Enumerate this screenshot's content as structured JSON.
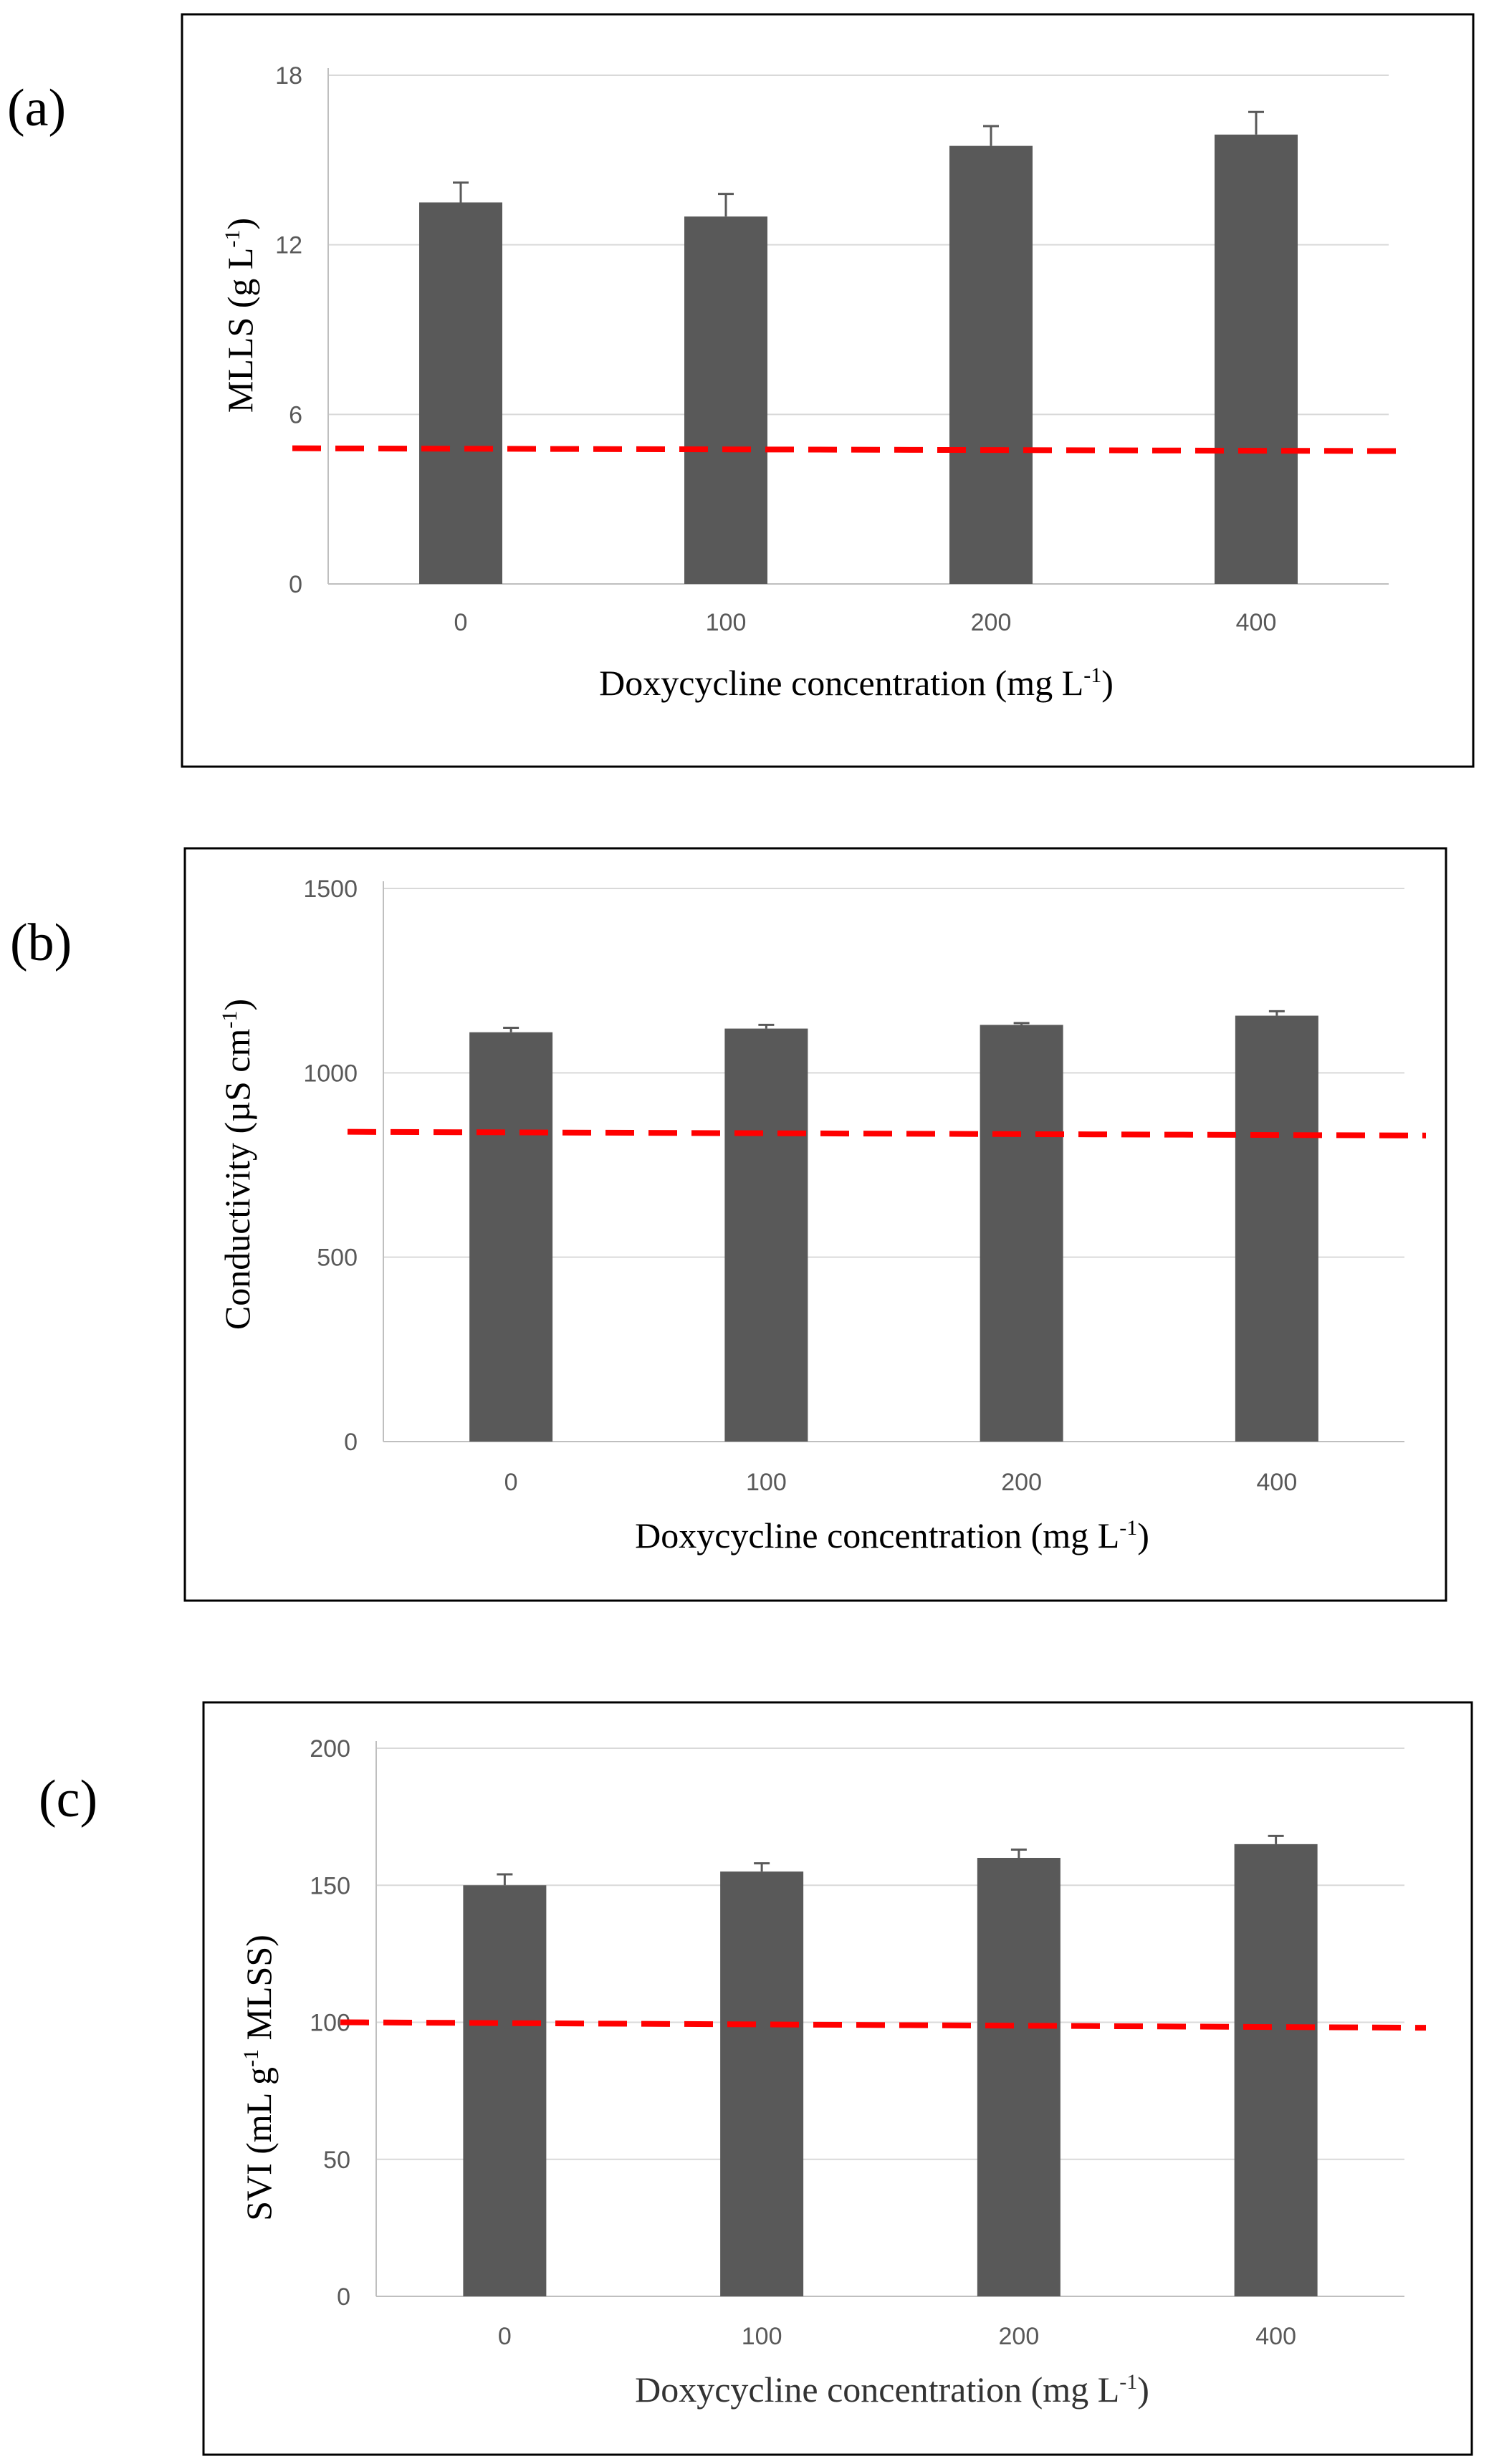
{
  "chart_data": [
    {
      "panel_label": "(a)",
      "type": "bar",
      "categories": [
        "0",
        "100",
        "200",
        "400"
      ],
      "values": [
        13.5,
        13.0,
        15.5,
        15.9
      ],
      "errors": [
        0.7,
        0.8,
        0.7,
        0.8
      ],
      "ylim": [
        0,
        18
      ],
      "yticks": [
        "0",
        "6",
        "12",
        "18"
      ],
      "ylabel": {
        "main": "MLLS (g L",
        "sup": "-1",
        "tail": ")"
      },
      "xlabel": {
        "main": "Doxycycline concentration (mg L",
        "sup": "-1",
        "tail": ")"
      },
      "reference_line": {
        "start": 4.8,
        "end": 4.7
      },
      "bar_color": "#595959",
      "line_color": "#ff0000",
      "grid": true
    },
    {
      "panel_label": "(b)",
      "type": "bar",
      "categories": [
        "0",
        "100",
        "200",
        "400"
      ],
      "values": [
        1110,
        1120,
        1130,
        1155
      ],
      "errors": [
        12,
        10,
        5,
        12
      ],
      "ylim": [
        0,
        1500
      ],
      "yticks": [
        "0",
        "500",
        "1000",
        "1500"
      ],
      "ylabel": {
        "main": "Conductivity (µS cm",
        "sup": "-1",
        "tail": ")"
      },
      "xlabel": {
        "main": "Doxycycline concentration (mg L",
        "sup": "-1",
        "tail": ")"
      },
      "reference_line": {
        "start": 840,
        "end": 830
      },
      "bar_color": "#595959",
      "line_color": "#ff0000",
      "grid": true
    },
    {
      "panel_label": "(c)",
      "type": "bar",
      "categories": [
        "0",
        "100",
        "200",
        "400"
      ],
      "values": [
        150,
        155,
        160,
        165
      ],
      "errors": [
        4,
        3,
        3,
        3
      ],
      "ylim": [
        0,
        200
      ],
      "yticks": [
        "0",
        "50",
        "100",
        "150",
        "200"
      ],
      "ylabel": {
        "main": "SVI (mL g",
        "sup": "-1",
        "tail": " MLSS)"
      },
      "xlabel": {
        "main": "Doxycycline concentration (mg L",
        "sup": "-1",
        "tail": ")"
      },
      "reference_line": {
        "start": 100,
        "end": 98
      },
      "bar_color": "#595959",
      "line_color": "#ff0000",
      "grid": true
    }
  ]
}
